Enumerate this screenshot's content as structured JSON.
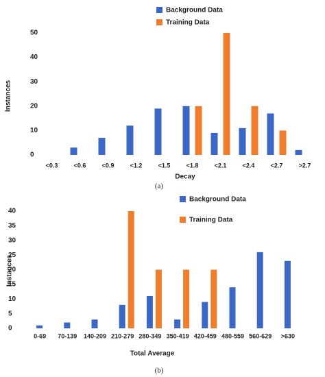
{
  "chart_data": [
    {
      "type": "bar",
      "caption": "(a)",
      "x_label": "Decay",
      "y_label": "Instances",
      "categories": [
        "<0.3",
        "<0.6",
        "<0.9",
        "<1.2",
        "<1.5",
        "<1.8",
        "<2.1",
        "<2.4",
        "<2.7",
        ">2.7"
      ],
      "series": [
        {
          "name": "Background Data",
          "color": "#3b67c6",
          "values": [
            0,
            3,
            7,
            12,
            19,
            20,
            9,
            11,
            17,
            2
          ]
        },
        {
          "name": "Training Data",
          "color": "#ef7d2b",
          "values": [
            0,
            0,
            0,
            0,
            0,
            20,
            50,
            20,
            10,
            0
          ]
        }
      ],
      "ylim": [
        0,
        50
      ],
      "yticks": [
        0,
        10,
        20,
        30,
        40,
        50
      ],
      "grid": false
    },
    {
      "type": "bar",
      "caption": "(b)",
      "x_label": "Total Average",
      "y_label": "Instances",
      "categories": [
        "0-69",
        "70-139",
        "140-209",
        "210-279",
        "280-349",
        "350-419",
        "420-459",
        "480-559",
        "560-629",
        ">630"
      ],
      "series": [
        {
          "name": "Background Data",
          "color": "#3b67c6",
          "values": [
            1,
            2,
            3,
            8,
            11,
            3,
            9,
            14,
            26,
            23
          ]
        },
        {
          "name": "Training Data",
          "color": "#ef7d2b",
          "values": [
            0,
            0,
            0,
            40,
            20,
            20,
            20,
            0,
            0,
            0
          ]
        }
      ],
      "ylim": [
        0,
        40
      ],
      "yticks": [
        0,
        5,
        10,
        15,
        20,
        25,
        30,
        35,
        40
      ],
      "grid": false
    }
  ]
}
